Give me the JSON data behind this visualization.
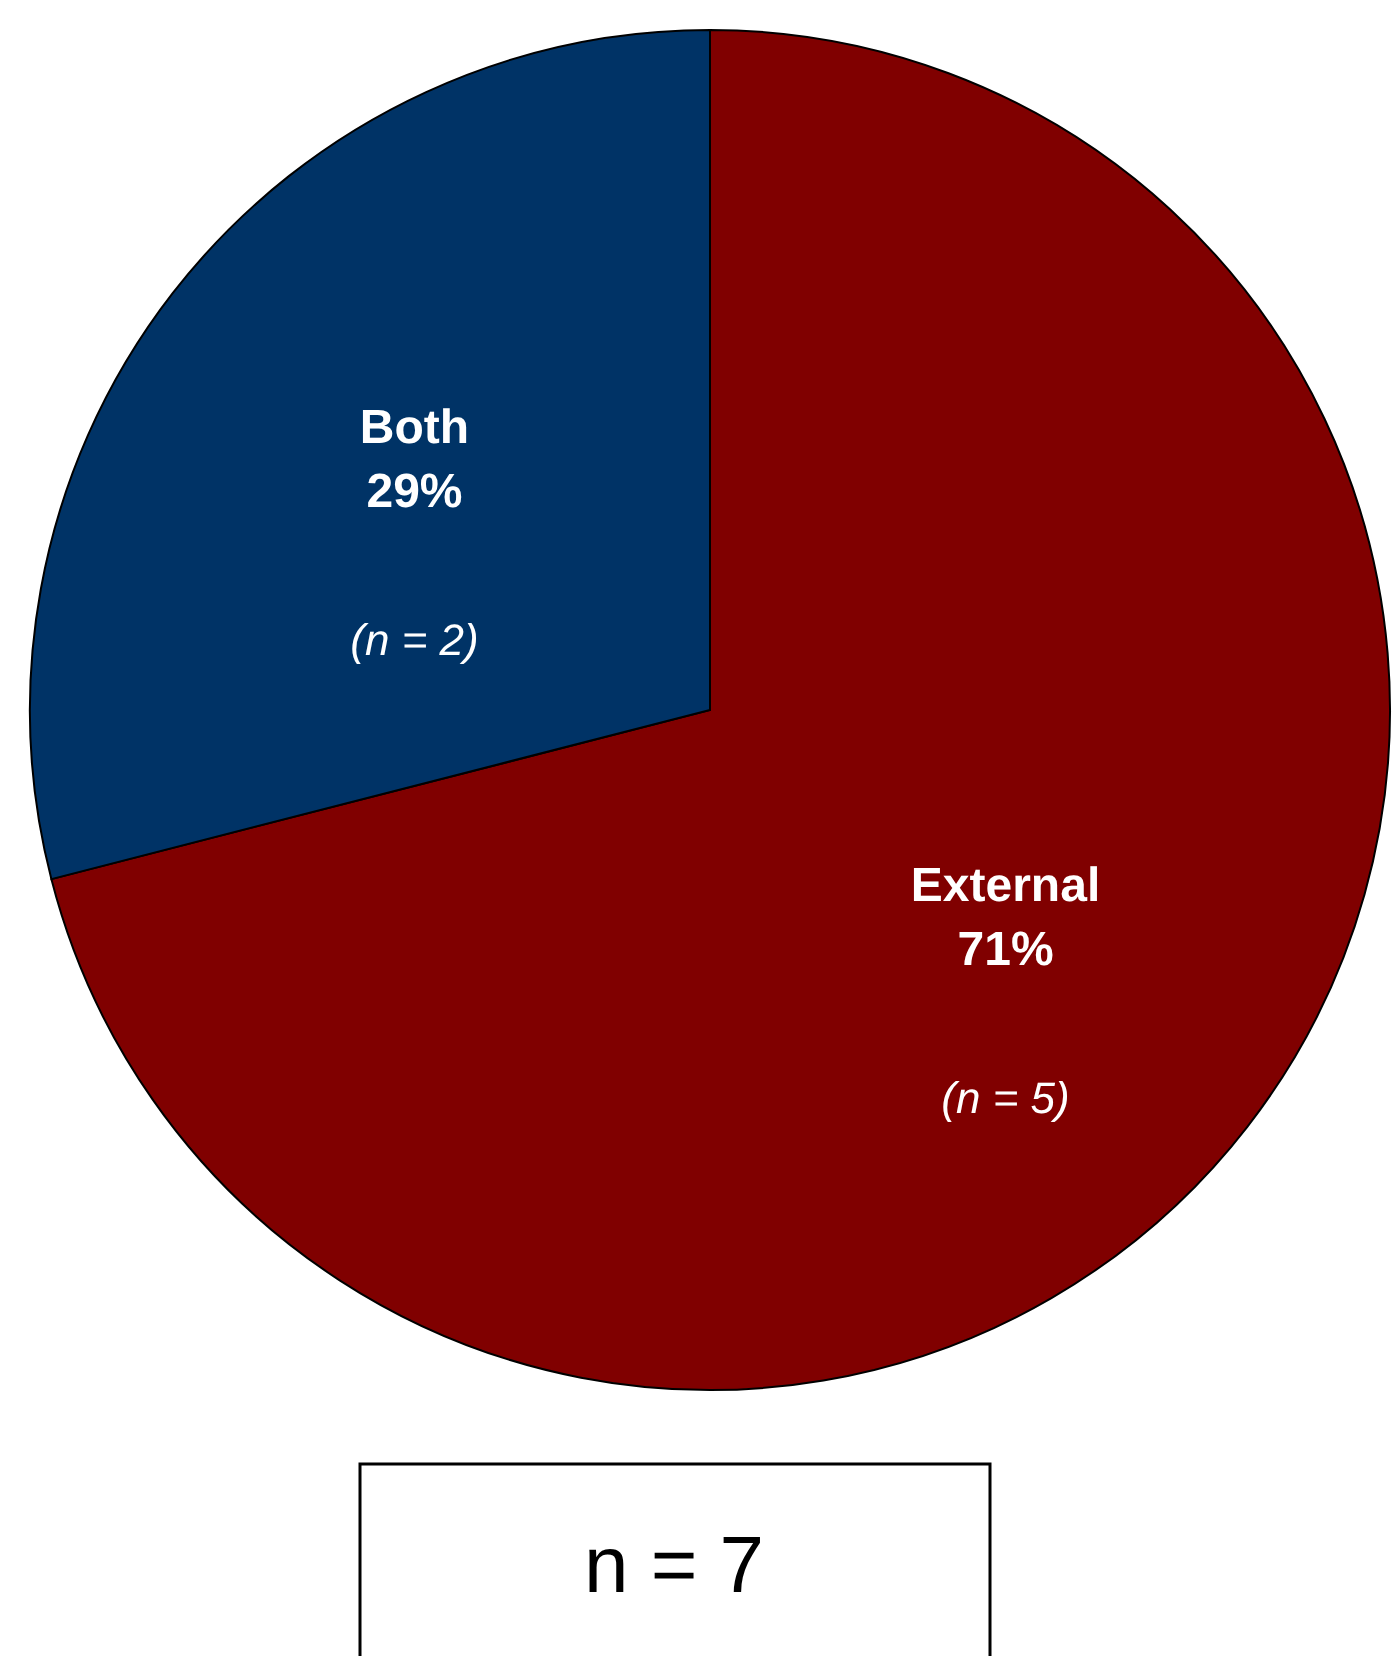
{
  "chart_data": {
    "type": "pie",
    "categories": [
      "External",
      "Both"
    ],
    "values": [
      71,
      29
    ],
    "colors": [
      "#800000",
      "#003366"
    ],
    "value_labels": [
      "71%",
      "29%"
    ],
    "annotations": [
      "(n = 5)",
      "(n = 2)",
      "n = 7"
    ]
  }
}
